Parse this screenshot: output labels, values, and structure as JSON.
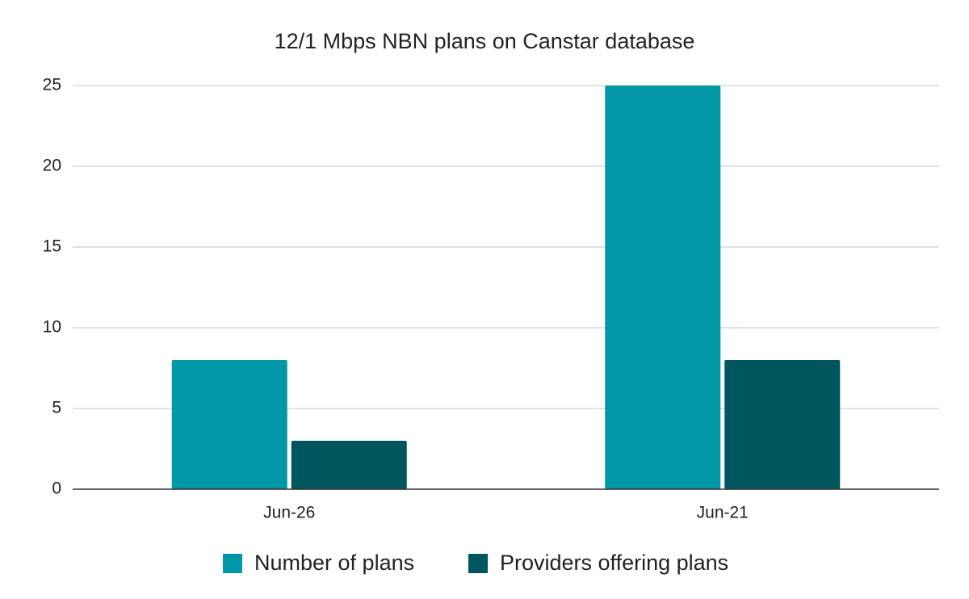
{
  "chart_data": {
    "type": "bar",
    "title": "12/1 Mbps NBN plans on Canstar database",
    "categories": [
      "Jun-26",
      "Jun-21"
    ],
    "series": [
      {
        "name": "Number of plans",
        "color": "#0097a7",
        "values": [
          8,
          25
        ]
      },
      {
        "name": "Providers offering plans",
        "color": "#00565f",
        "values": [
          3,
          8
        ]
      }
    ],
    "ylim": [
      0,
      25
    ],
    "yticks": [
      0,
      5,
      10,
      15,
      20,
      25
    ],
    "grid": true,
    "legend": "bottom"
  }
}
